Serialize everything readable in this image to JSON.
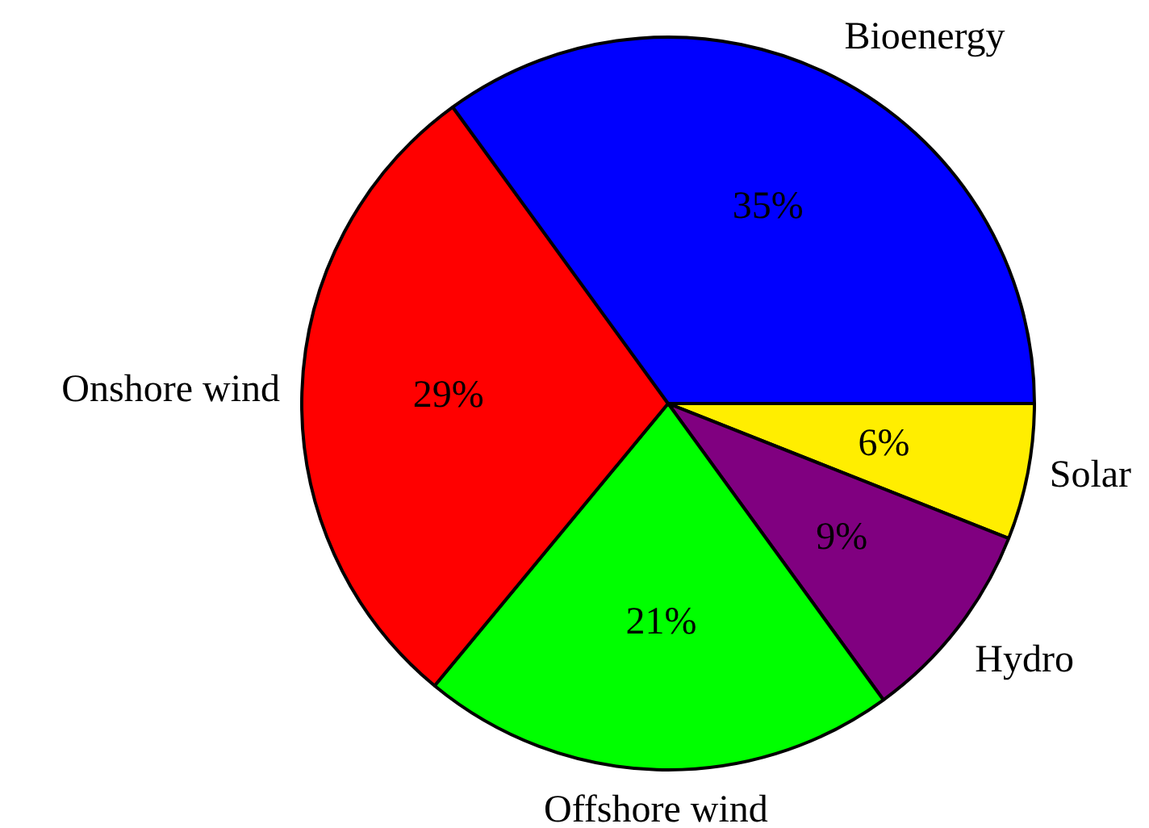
{
  "chart_data": {
    "type": "pie",
    "categories": [
      "Solar",
      "Hydro",
      "Offshore wind",
      "Onshore wind",
      "Bioenergy"
    ],
    "values": [
      6,
      9,
      21,
      29,
      35
    ],
    "colors": [
      "#ffee00",
      "#800080",
      "#00ff00",
      "#ff0000",
      "#0000ff"
    ],
    "value_labels": [
      "6%",
      "9%",
      "21%",
      "29%",
      "35%"
    ],
    "legend": false
  }
}
